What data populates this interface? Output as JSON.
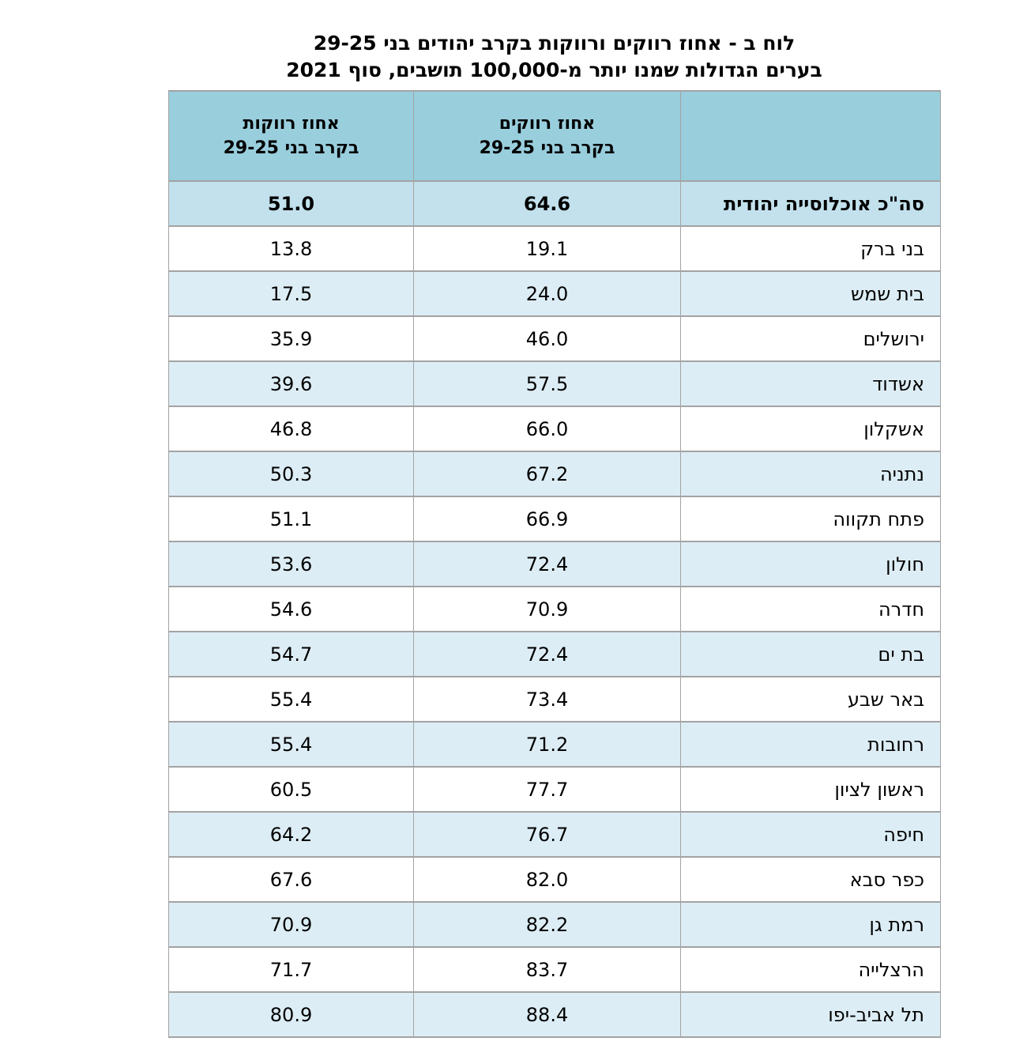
{
  "title": {
    "line1": "לוח ב - אחוז רווקים ורווקות בקרב יהודים בני 29-25",
    "line2": "בערים הגדולות שמנו יותר מ-100,000 תושבים, סוף 2021"
  },
  "table": {
    "direction": "rtl",
    "columns": [
      {
        "key": "city",
        "label": ""
      },
      {
        "key": "singles_men_pct",
        "label": "אחוז רווקים\nבקרב בני 29-25"
      },
      {
        "key": "singles_women_pct",
        "label": "אחוז רווקות\nבקרב בני 29-25"
      }
    ],
    "total_row": {
      "city": "סה\"כ אוכלוסייה יהודית",
      "men": "64.6",
      "women": "51.0"
    },
    "rows": [
      {
        "city": "בני ברק",
        "men": "19.1",
        "women": "13.8"
      },
      {
        "city": "בית שמש",
        "men": "24.0",
        "women": "17.5"
      },
      {
        "city": "ירושלים",
        "men": "46.0",
        "women": "35.9"
      },
      {
        "city": "אשדוד",
        "men": "57.5",
        "women": "39.6"
      },
      {
        "city": "אשקלון",
        "men": "66.0",
        "women": "46.8"
      },
      {
        "city": "נתניה",
        "men": "67.2",
        "women": "50.3"
      },
      {
        "city": "פתח תקווה",
        "men": "66.9",
        "women": "51.1"
      },
      {
        "city": "חולון",
        "men": "72.4",
        "women": "53.6"
      },
      {
        "city": "חדרה",
        "men": "70.9",
        "women": "54.6"
      },
      {
        "city": "בת ים",
        "men": "72.4",
        "women": "54.7"
      },
      {
        "city": "באר שבע",
        "men": "73.4",
        "women": "55.4"
      },
      {
        "city": "רחובות",
        "men": "71.2",
        "women": "55.4"
      },
      {
        "city": "ראשון לציון",
        "men": "77.7",
        "women": "60.5"
      },
      {
        "city": "חיפה",
        "men": "76.7",
        "women": "64.2"
      },
      {
        "city": "כפר סבא",
        "men": "82.0",
        "women": "67.6"
      },
      {
        "city": "רמת גן",
        "men": "82.2",
        "women": "70.9"
      },
      {
        "city": "הרצלייה",
        "men": "83.7",
        "women": "71.7"
      },
      {
        "city": "תל אביב-יפו",
        "men": "88.4",
        "women": "80.9"
      }
    ],
    "colors": {
      "header_bg": "#99cedd",
      "total_bg": "#c2e1ec",
      "stripe_bg": "#ddedf5",
      "row_bg": "#ffffff",
      "border": "#a3a3a3",
      "text": "#000000"
    }
  }
}
